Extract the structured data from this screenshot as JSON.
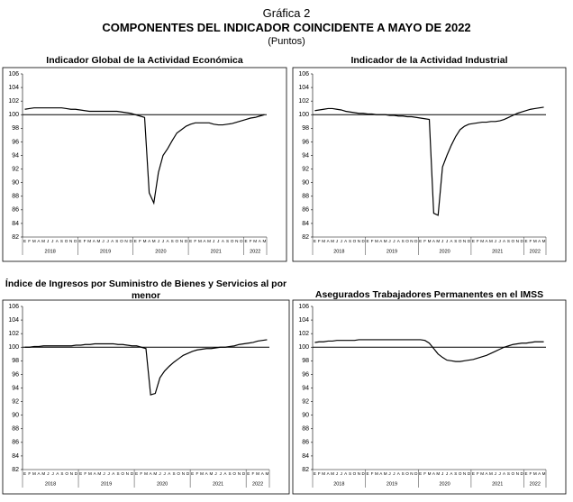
{
  "header": {
    "title": "Gráfica 2",
    "subtitle": "COMPONENTES DEL INDICADOR COINCIDENTE A MAYO DE 2022",
    "unit": "(Puntos)"
  },
  "chart_data": [
    {
      "type": "line",
      "title": "Indicador Global de la Actividad Económica",
      "categories": [
        "E",
        "F",
        "M",
        "A",
        "M",
        "J",
        "J",
        "A",
        "S",
        "O",
        "N",
        "D",
        "E",
        "F",
        "M",
        "A",
        "M",
        "J",
        "J",
        "A",
        "S",
        "O",
        "N",
        "D",
        "E",
        "F",
        "M",
        "A",
        "M",
        "J",
        "J",
        "A",
        "S",
        "O",
        "N",
        "D",
        "E",
        "F",
        "M",
        "A",
        "M",
        "J",
        "J",
        "A",
        "S",
        "O",
        "N",
        "D",
        "E",
        "F",
        "M",
        "A",
        "M"
      ],
      "years": [
        "2018",
        "2019",
        "2020",
        "2021",
        "2022"
      ],
      "values": [
        100.8,
        100.9,
        101,
        101,
        101,
        101,
        101,
        101,
        101,
        100.9,
        100.8,
        100.8,
        100.7,
        100.6,
        100.5,
        100.5,
        100.5,
        100.5,
        100.5,
        100.5,
        100.5,
        100.4,
        100.3,
        100.2,
        100,
        99.8,
        99.6,
        88.5,
        87,
        91.5,
        94,
        95,
        96.2,
        97.3,
        97.8,
        98.3,
        98.6,
        98.8,
        98.8,
        98.8,
        98.8,
        98.6,
        98.5,
        98.5,
        98.6,
        98.7,
        98.9,
        99.1,
        99.3,
        99.5,
        99.6,
        99.8,
        100
      ],
      "color": "#000000",
      "reference_line": 100,
      "ylim": [
        82,
        106
      ],
      "yticks": [
        82,
        84,
        86,
        88,
        90,
        92,
        94,
        96,
        98,
        100,
        102,
        104,
        106
      ]
    },
    {
      "type": "line",
      "title": "Indicador de la Actividad Industrial",
      "categories": [
        "E",
        "F",
        "M",
        "A",
        "M",
        "J",
        "J",
        "A",
        "S",
        "O",
        "N",
        "D",
        "E",
        "F",
        "M",
        "A",
        "M",
        "J",
        "J",
        "A",
        "S",
        "O",
        "N",
        "D",
        "E",
        "F",
        "M",
        "A",
        "M",
        "J",
        "J",
        "A",
        "S",
        "O",
        "N",
        "D",
        "E",
        "F",
        "M",
        "A",
        "M",
        "J",
        "J",
        "A",
        "S",
        "O",
        "N",
        "D",
        "E",
        "F",
        "M",
        "A",
        "M"
      ],
      "years": [
        "2018",
        "2019",
        "2020",
        "2021",
        "2022"
      ],
      "values": [
        100.6,
        100.7,
        100.8,
        100.9,
        100.9,
        100.8,
        100.7,
        100.5,
        100.4,
        100.3,
        100.2,
        100.2,
        100.1,
        100.1,
        100,
        100,
        100,
        99.9,
        99.9,
        99.8,
        99.8,
        99.7,
        99.7,
        99.6,
        99.5,
        99.4,
        99.3,
        85.5,
        85.2,
        92.3,
        94,
        95.5,
        96.8,
        97.8,
        98.3,
        98.6,
        98.7,
        98.8,
        98.9,
        98.9,
        99,
        99,
        99.1,
        99.3,
        99.6,
        99.9,
        100.2,
        100.4,
        100.6,
        100.8,
        100.9,
        101,
        101.1
      ],
      "color": "#000000",
      "reference_line": 100,
      "ylim": [
        82,
        106
      ],
      "yticks": [
        82,
        84,
        86,
        88,
        90,
        92,
        94,
        96,
        98,
        100,
        102,
        104,
        106
      ]
    },
    {
      "type": "line",
      "title": "Índice de Ingresos por Suministro de Bienes y Servicios al por menor",
      "categories": [
        "E",
        "F",
        "M",
        "A",
        "M",
        "J",
        "J",
        "A",
        "S",
        "O",
        "N",
        "D",
        "E",
        "F",
        "M",
        "A",
        "M",
        "J",
        "J",
        "A",
        "S",
        "O",
        "N",
        "D",
        "E",
        "F",
        "M",
        "A",
        "M",
        "J",
        "J",
        "A",
        "S",
        "O",
        "N",
        "D",
        "E",
        "F",
        "M",
        "A",
        "M",
        "J",
        "J",
        "A",
        "S",
        "O",
        "N",
        "D",
        "E",
        "F",
        "M",
        "A",
        "M"
      ],
      "years": [
        "2018",
        "2019",
        "2020",
        "2021",
        "2022"
      ],
      "values": [
        100,
        100,
        100.1,
        100.1,
        100.2,
        100.2,
        100.2,
        100.2,
        100.2,
        100.2,
        100.2,
        100.3,
        100.3,
        100.4,
        100.4,
        100.5,
        100.5,
        100.5,
        100.5,
        100.5,
        100.4,
        100.4,
        100.3,
        100.2,
        100.2,
        100,
        99.8,
        93,
        93.2,
        95.5,
        96.5,
        97.2,
        97.8,
        98.3,
        98.8,
        99.1,
        99.4,
        99.6,
        99.7,
        99.8,
        99.8,
        99.9,
        100,
        100,
        100.1,
        100.2,
        100.4,
        100.5,
        100.6,
        100.7,
        100.9,
        101,
        101.1
      ],
      "color": "#000000",
      "reference_line": 100,
      "ylim": [
        82,
        106
      ],
      "yticks": [
        82,
        84,
        86,
        88,
        90,
        92,
        94,
        96,
        98,
        100,
        102,
        104,
        106
      ]
    },
    {
      "type": "line",
      "title": "Asegurados Trabajadores Permanentes en el IMSS",
      "categories": [
        "E",
        "F",
        "M",
        "A",
        "M",
        "J",
        "J",
        "A",
        "S",
        "O",
        "N",
        "D",
        "E",
        "F",
        "M",
        "A",
        "M",
        "J",
        "J",
        "A",
        "S",
        "O",
        "N",
        "D",
        "E",
        "F",
        "M",
        "A",
        "M",
        "J",
        "J",
        "A",
        "S",
        "O",
        "N",
        "D",
        "E",
        "F",
        "M",
        "A",
        "M",
        "J",
        "J",
        "A",
        "S",
        "O",
        "N",
        "D",
        "E",
        "F",
        "M",
        "A",
        "M"
      ],
      "years": [
        "2018",
        "2019",
        "2020",
        "2021",
        "2022"
      ],
      "values": [
        100.7,
        100.8,
        100.8,
        100.9,
        100.9,
        101,
        101,
        101,
        101,
        101,
        101.1,
        101.1,
        101.1,
        101.1,
        101.1,
        101.1,
        101.1,
        101.1,
        101.1,
        101.1,
        101.1,
        101.1,
        101.1,
        101.1,
        101.1,
        101,
        100.6,
        99.8,
        99,
        98.5,
        98.1,
        98,
        97.9,
        97.9,
        98,
        98.1,
        98.2,
        98.4,
        98.6,
        98.8,
        99.1,
        99.4,
        99.7,
        100,
        100.2,
        100.4,
        100.5,
        100.6,
        100.6,
        100.7,
        100.8,
        100.8,
        100.8
      ],
      "color": "#000000",
      "reference_line": 100,
      "ylim": [
        82,
        106
      ],
      "yticks": [
        82,
        84,
        86,
        88,
        90,
        92,
        94,
        96,
        98,
        100,
        102,
        104,
        106
      ]
    }
  ]
}
